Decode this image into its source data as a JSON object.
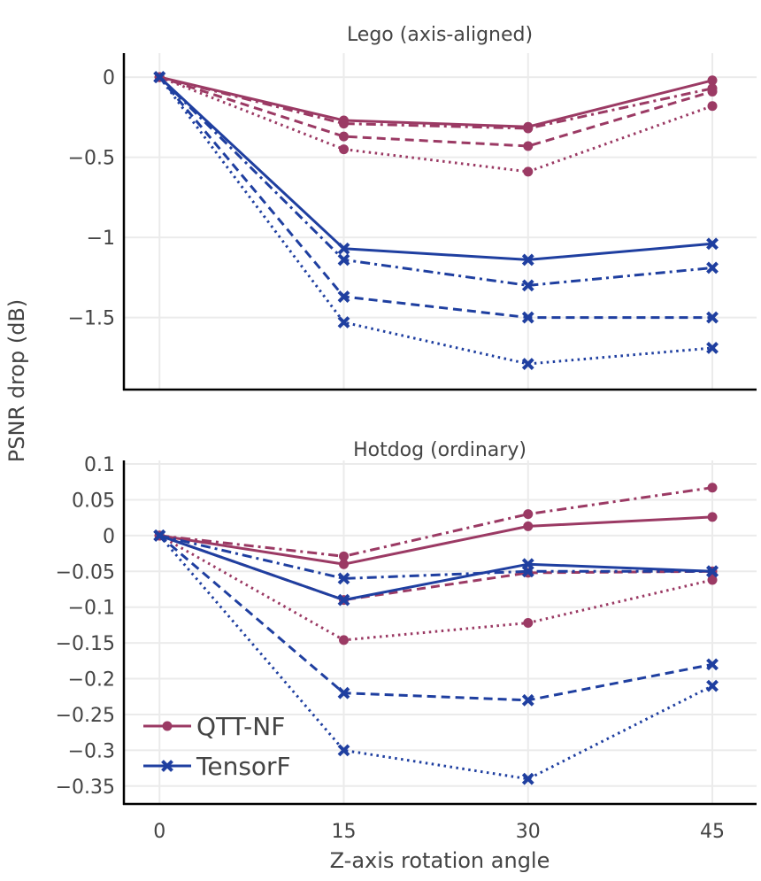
{
  "chart_data": {
    "type": "line",
    "shared_ylabel": "PSNR drop (dB)",
    "shared_xlabel": "Z-axis rotation angle",
    "x": [
      0,
      15,
      30,
      45
    ],
    "x_tick_labels": [
      "0",
      "15",
      "30",
      "45"
    ],
    "legend": [
      {
        "name": "QTT-NF",
        "color": "#9b3a64",
        "marker": "circle"
      },
      {
        "name": "TensorF",
        "color": "#1f3fa0",
        "marker": "x"
      }
    ],
    "line_styles": [
      "solid",
      "dashdot",
      "dash",
      "dot"
    ],
    "panels": [
      {
        "title": "Lego (axis-aligned)",
        "ylim": [
          -1.95,
          0.15
        ],
        "y_ticks": [
          0,
          -0.5,
          -1,
          -1.5
        ],
        "y_tick_labels": [
          "0",
          "−0.5",
          "−1",
          "−1.5"
        ],
        "series": [
          {
            "model": "QTT-NF",
            "style": "solid",
            "values": [
              0,
              -0.27,
              -0.31,
              -0.02
            ]
          },
          {
            "model": "QTT-NF",
            "style": "dashdot",
            "values": [
              0,
              -0.29,
              -0.32,
              -0.07
            ]
          },
          {
            "model": "QTT-NF",
            "style": "dash",
            "values": [
              0,
              -0.37,
              -0.43,
              -0.09
            ]
          },
          {
            "model": "QTT-NF",
            "style": "dot",
            "values": [
              0,
              -0.45,
              -0.59,
              -0.18
            ]
          },
          {
            "model": "TensorF",
            "style": "solid",
            "values": [
              0,
              -1.07,
              -1.14,
              -1.04
            ]
          },
          {
            "model": "TensorF",
            "style": "dashdot",
            "values": [
              0,
              -1.14,
              -1.3,
              -1.19
            ]
          },
          {
            "model": "TensorF",
            "style": "dash",
            "values": [
              0,
              -1.37,
              -1.5,
              -1.5
            ]
          },
          {
            "model": "TensorF",
            "style": "dot",
            "values": [
              0,
              -1.53,
              -1.79,
              -1.69
            ]
          }
        ]
      },
      {
        "title": "Hotdog (ordinary)",
        "ylim": [
          -0.375,
          0.105
        ],
        "y_ticks": [
          0.1,
          0.05,
          0,
          -0.05,
          -0.1,
          -0.15,
          -0.2,
          -0.25,
          -0.3,
          -0.35
        ],
        "y_tick_labels": [
          "0.1",
          "0.05",
          "0",
          "−0.05",
          "−0.1",
          "−0.15",
          "−0.2",
          "−0.25",
          "−0.3",
          "−0.35"
        ],
        "series": [
          {
            "model": "QTT-NF",
            "style": "solid",
            "values": [
              0,
              -0.04,
              0.013,
              0.026
            ]
          },
          {
            "model": "QTT-NF",
            "style": "dashdot",
            "values": [
              0,
              -0.029,
              0.03,
              0.067
            ]
          },
          {
            "model": "QTT-NF",
            "style": "dash",
            "values": [
              0,
              -0.09,
              -0.052,
              -0.05
            ]
          },
          {
            "model": "QTT-NF",
            "style": "dot",
            "values": [
              0,
              -0.146,
              -0.122,
              -0.062
            ]
          },
          {
            "model": "TensorF",
            "style": "solid",
            "values": [
              0,
              -0.09,
              -0.04,
              -0.05
            ]
          },
          {
            "model": "TensorF",
            "style": "dashdot",
            "values": [
              0,
              -0.06,
              -0.05,
              -0.05
            ]
          },
          {
            "model": "TensorF",
            "style": "dash",
            "values": [
              0,
              -0.22,
              -0.23,
              -0.18
            ]
          },
          {
            "model": "TensorF",
            "style": "dot",
            "values": [
              0,
              -0.3,
              -0.34,
              -0.21
            ]
          }
        ]
      }
    ]
  }
}
